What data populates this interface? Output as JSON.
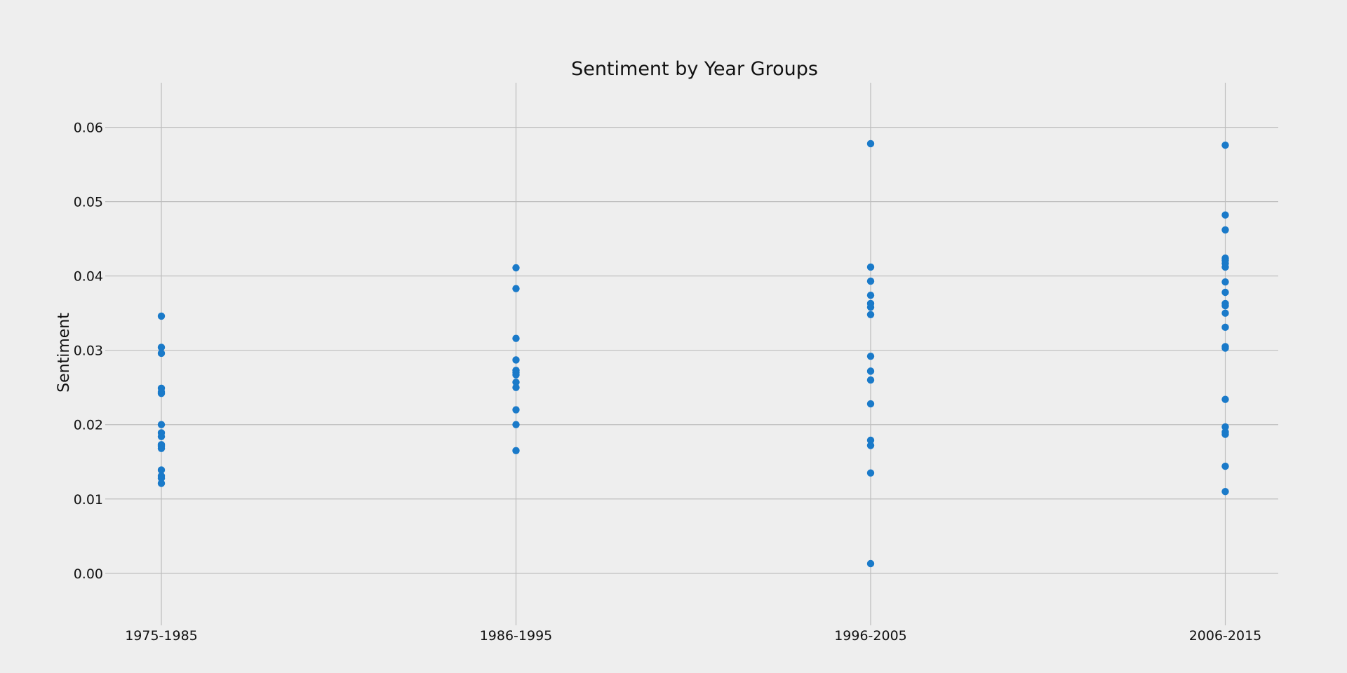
{
  "colors": {
    "background": "#eeeeee",
    "grid": "#bdbdbd",
    "point": "#1a7ac9",
    "text": "#111111"
  },
  "chart_data": {
    "type": "scatter",
    "title": "Sentiment by Year Groups",
    "xlabel": "",
    "ylabel": "Sentiment",
    "categories": [
      "1975-1985",
      "1986-1995",
      "1996-2005",
      "2006-2015"
    ],
    "ylim": [
      -0.007,
      0.066
    ],
    "yticks": [
      0.0,
      0.01,
      0.02,
      0.03,
      0.04,
      0.05,
      0.06
    ],
    "ytick_labels": [
      "0.00",
      "0.01",
      "0.02",
      "0.03",
      "0.04",
      "0.05",
      "0.06"
    ],
    "grid": true,
    "legend": "none",
    "series": [
      {
        "category": "1975-1985",
        "values": [
          0.0346,
          0.0304,
          0.0296,
          0.0249,
          0.0244,
          0.0242,
          0.02,
          0.0189,
          0.0184,
          0.0173,
          0.0171,
          0.0168,
          0.0139,
          0.0131,
          0.0128,
          0.0121
        ]
      },
      {
        "category": "1986-1995",
        "values": [
          0.0411,
          0.0383,
          0.0316,
          0.0287,
          0.0273,
          0.027,
          0.0267,
          0.0257,
          0.025,
          0.022,
          0.02,
          0.0165
        ]
      },
      {
        "category": "1996-2005",
        "values": [
          0.0578,
          0.0412,
          0.0393,
          0.0374,
          0.0363,
          0.0358,
          0.0348,
          0.0292,
          0.0272,
          0.026,
          0.0228,
          0.0179,
          0.0172,
          0.0135,
          0.0013
        ]
      },
      {
        "category": "2006-2015",
        "values": [
          0.0576,
          0.0482,
          0.0462,
          0.0424,
          0.0421,
          0.0417,
          0.0412,
          0.0392,
          0.0378,
          0.0363,
          0.036,
          0.035,
          0.0331,
          0.0305,
          0.0303,
          0.0234,
          0.0197,
          0.019,
          0.0187,
          0.0144,
          0.011
        ]
      }
    ]
  }
}
